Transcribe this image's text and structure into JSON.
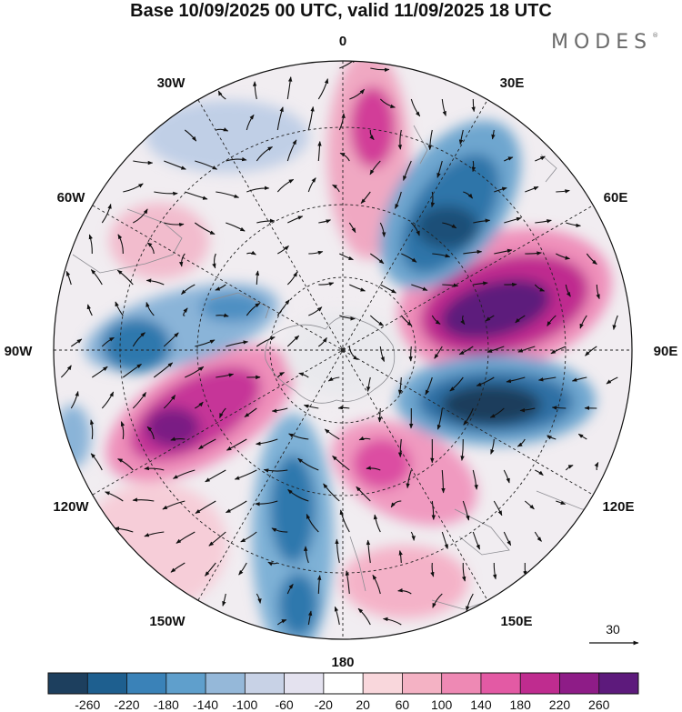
{
  "title": "Base 10/09/2025 00 UTC, valid 11/09/2025 18 UTC",
  "brand": "MODES",
  "brand_mark": "®",
  "map": {
    "projection": "south-polar-stereographic",
    "meridian_labels": {
      "top": "0",
      "bottom": "180",
      "left": "90W",
      "right": "90E",
      "upper_left_1": "30W",
      "upper_left_2": "60W",
      "upper_right_1": "30E",
      "upper_right_2": "60E",
      "lower_left_1": "120W",
      "lower_left_2": "150W",
      "lower_right_1": "120E",
      "lower_right_2": "150E"
    },
    "reference_vector_label": "30",
    "colors": {
      "neg_strong": "#1d4467",
      "neg": "#2a6fa0",
      "neg_mid": "#4d97c5",
      "neg_light": "#a7c2de",
      "neutral": "#ffffff",
      "pos_light": "#f5c3d1",
      "pos": "#e05aa4",
      "pos_strong": "#6a1880"
    }
  },
  "colorbar": {
    "colors": [
      "#1d3f5e",
      "#1e5f8f",
      "#3a82b8",
      "#5f9fcc",
      "#95b8d9",
      "#c8d2e6",
      "#e4e2ef",
      "#ffffff",
      "#f9d7dc",
      "#f4b2c4",
      "#ee89b4",
      "#e35aa4",
      "#bf2c8f",
      "#8e1c87",
      "#5d1a7c"
    ],
    "ticks": [
      "-260",
      "-220",
      "-180",
      "-140",
      "-100",
      "-60",
      "-20",
      "20",
      "60",
      "100",
      "140",
      "180",
      "220",
      "260"
    ]
  }
}
